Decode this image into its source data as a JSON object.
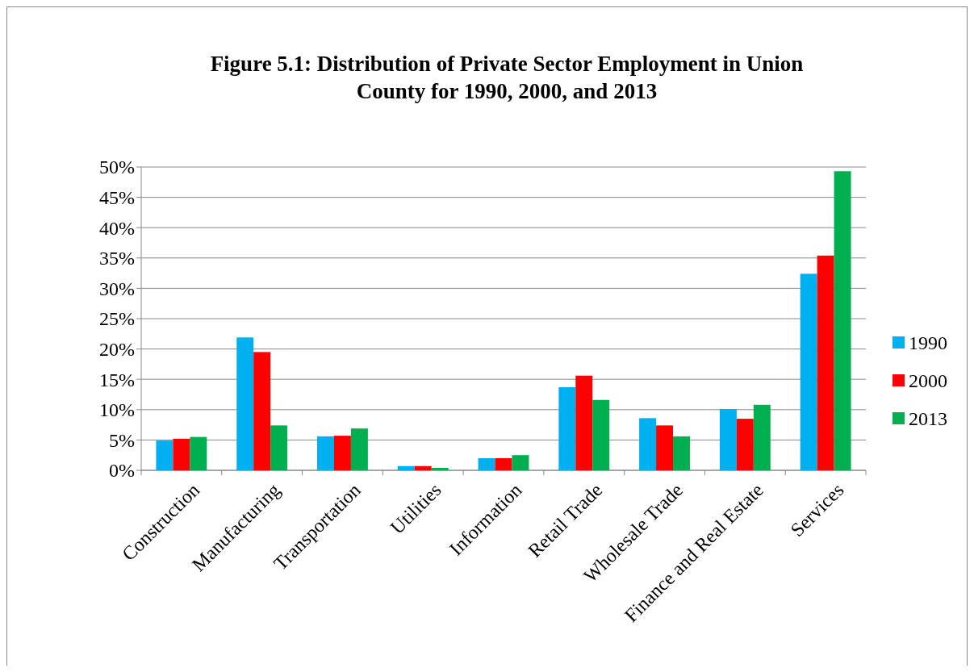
{
  "chart_data": {
    "type": "bar",
    "title": "Figure 5.1: Distribution of Private Sector Employment in Union County for 1990, 2000, and 2013",
    "categories": [
      "Construction",
      "Manufacturing",
      "Transportation",
      "Utilities",
      "Information",
      "Retail Trade",
      "Wholesale Trade",
      "Finance and Real Estate",
      "Services"
    ],
    "series": [
      {
        "name": "1990",
        "color": "#00b0f0",
        "values": [
          4.9,
          21.9,
          5.6,
          0.7,
          2.0,
          13.7,
          8.6,
          10.1,
          32.4
        ]
      },
      {
        "name": "2000",
        "color": "#ff0000",
        "values": [
          5.2,
          19.5,
          5.7,
          0.7,
          2.0,
          15.6,
          7.4,
          8.5,
          35.4
        ]
      },
      {
        "name": "2013",
        "color": "#00b050",
        "values": [
          5.5,
          7.4,
          6.9,
          0.4,
          2.5,
          11.6,
          5.6,
          10.8,
          49.3
        ]
      }
    ],
    "ylim": [
      0,
      50
    ],
    "yticks": [
      {
        "value": 0,
        "label": "0%"
      },
      {
        "value": 5,
        "label": "5%"
      },
      {
        "value": 10,
        "label": "10%"
      },
      {
        "value": 15,
        "label": "15%"
      },
      {
        "value": 20,
        "label": "20%"
      },
      {
        "value": 25,
        "label": "25%"
      },
      {
        "value": 30,
        "label": "30%"
      },
      {
        "value": 35,
        "label": "35%"
      },
      {
        "value": 40,
        "label": "40%"
      },
      {
        "value": 45,
        "label": "45%"
      },
      {
        "value": 50,
        "label": "50%"
      }
    ],
    "grid": "y",
    "legend": "right"
  }
}
